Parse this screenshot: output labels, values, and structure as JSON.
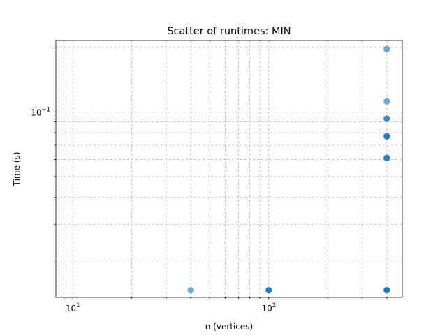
{
  "chart_data": {
    "type": "scatter",
    "title": "Scatter of runtimes: MIN",
    "xlabel": "n (vertices)",
    "ylabel": "Time (s)",
    "xscale": "log",
    "yscale": "log",
    "xlim": [
      8.2,
      480
    ],
    "ylim": [
      0.0137,
      0.215
    ],
    "grid": true,
    "grid_which": "both",
    "marker_color": "#1f77b4",
    "marker_alpha": 0.6,
    "x_major_ticks": [
      {
        "value": 10,
        "base": "10",
        "exp": "1"
      },
      {
        "value": 100,
        "base": "10",
        "exp": "2"
      }
    ],
    "y_major_ticks": [
      {
        "value": 0.1,
        "base": "10",
        "exp": "−1"
      }
    ],
    "points": [
      {
        "x": 40,
        "y": 0.0148
      },
      {
        "x": 100,
        "y": 0.0148
      },
      {
        "x": 100,
        "y": 0.0148
      },
      {
        "x": 100,
        "y": 0.0148
      },
      {
        "x": 400,
        "y": 0.0148
      },
      {
        "x": 400,
        "y": 0.0148
      },
      {
        "x": 400,
        "y": 0.0148
      },
      {
        "x": 400,
        "y": 0.0148
      },
      {
        "x": 400,
        "y": 0.0148
      },
      {
        "x": 400,
        "y": 0.061
      },
      {
        "x": 400,
        "y": 0.061
      },
      {
        "x": 400,
        "y": 0.061
      },
      {
        "x": 400,
        "y": 0.077
      },
      {
        "x": 400,
        "y": 0.077
      },
      {
        "x": 400,
        "y": 0.077
      },
      {
        "x": 400,
        "y": 0.093
      },
      {
        "x": 400,
        "y": 0.093
      },
      {
        "x": 400,
        "y": 0.112
      },
      {
        "x": 400,
        "y": 0.196
      }
    ]
  }
}
